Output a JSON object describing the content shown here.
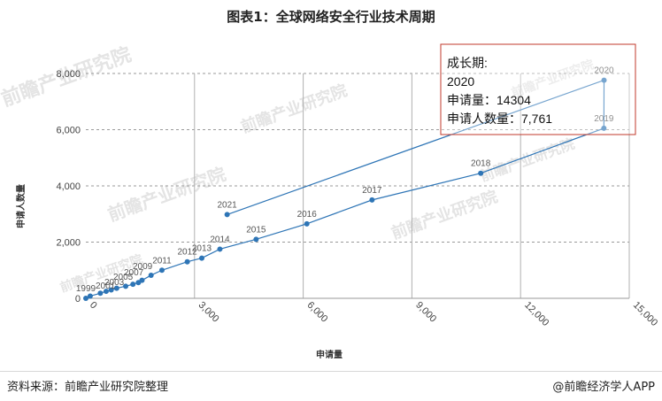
{
  "chart_data": {
    "type": "line",
    "title": "图表1：全球网络安全行业技术周期",
    "xlabel": "申请量",
    "ylabel": "申请人数量",
    "xlim": [
      0,
      15000
    ],
    "ylim": [
      0,
      8000
    ],
    "x_ticks": [
      0,
      3000,
      6000,
      9000,
      12000,
      15000
    ],
    "x_tick_labels": [
      "0",
      "3,000",
      "6,000",
      "9,000",
      "12,000",
      "15,000"
    ],
    "y_ticks": [
      0,
      2000,
      4000,
      6000,
      8000
    ],
    "y_tick_labels": [
      "0",
      "2,000",
      "4,000",
      "6,000",
      "8,000"
    ],
    "grid": true,
    "series_color": "#2e75b6",
    "points": [
      {
        "label": "1999",
        "x": 0,
        "y": 0
      },
      {
        "label": "",
        "x": 120,
        "y": 80
      },
      {
        "label": "",
        "x": 400,
        "y": 180
      },
      {
        "label": "",
        "x": 560,
        "y": 250
      },
      {
        "label": "",
        "x": 700,
        "y": 300
      },
      {
        "label": "",
        "x": 850,
        "y": 360
      },
      {
        "label": "",
        "x": 1100,
        "y": 430
      },
      {
        "label": "",
        "x": 1300,
        "y": 500
      },
      {
        "label": "",
        "x": 1450,
        "y": 560
      },
      {
        "label": "",
        "x": 1550,
        "y": 640
      },
      {
        "label": "",
        "x": 1800,
        "y": 820
      },
      {
        "label": "2011",
        "x": 2100,
        "y": 1000
      },
      {
        "label": "2012",
        "x": 2800,
        "y": 1300
      },
      {
        "label": "2013",
        "x": 3200,
        "y": 1430
      },
      {
        "label": "2014",
        "x": 3700,
        "y": 1750
      },
      {
        "label": "2015",
        "x": 4700,
        "y": 2100
      },
      {
        "label": "2016",
        "x": 6100,
        "y": 2650
      },
      {
        "label": "2017",
        "x": 7900,
        "y": 3500
      },
      {
        "label": "2018",
        "x": 10900,
        "y": 4450
      },
      {
        "label": "2019",
        "x": 14300,
        "y": 6050
      },
      {
        "label": "2020",
        "x": 14304,
        "y": 7761
      },
      {
        "label": "2021",
        "x": 3900,
        "y": 2980
      }
    ],
    "cluster_labels": [
      "2001",
      "2003",
      "2005",
      "2007",
      "2009"
    ],
    "tooltip": {
      "line1": "成长期:",
      "line2": "2020",
      "line3": "申请量：14304",
      "line4": "申请人数量：7,761"
    }
  },
  "footer": {
    "source": "资料来源：前瞻产业研究院整理",
    "brand": "@前瞻经济学人APP"
  },
  "watermark": {
    "text": "前瞻产业研究院"
  }
}
